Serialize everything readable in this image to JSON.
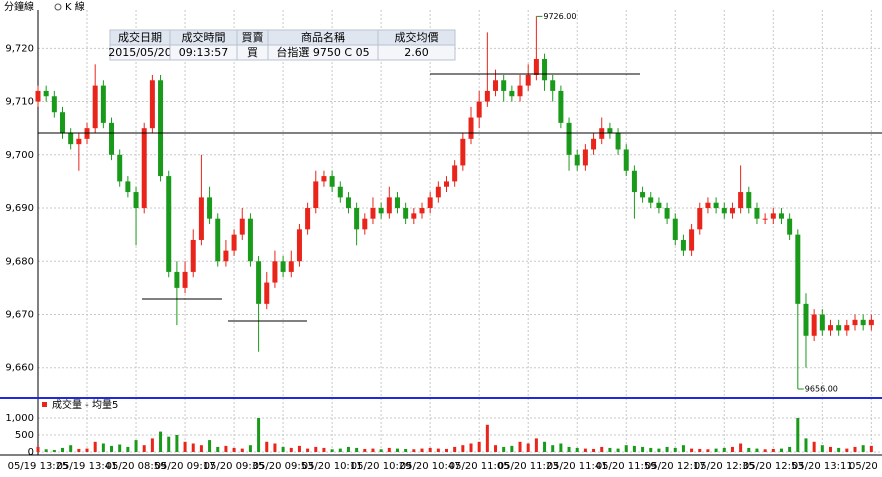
{
  "header": {
    "mode_minute": "分鐘線",
    "mode_k": "K 線"
  },
  "trade_table": {
    "columns": [
      "成交日期",
      "成交時間",
      "買賣",
      "商品名稱",
      "成交均價"
    ],
    "row": [
      "2015/05/20",
      "09:13:57",
      "買",
      "台指選  9750 C 05",
      "2.60"
    ]
  },
  "chart_data": {
    "type": "candlestick",
    "categories": [
      "05/19 13:25",
      null,
      null,
      null,
      null,
      null,
      "05/19 13:41",
      null,
      null,
      null,
      null,
      null,
      "05/20 08:59",
      null,
      null,
      null,
      null,
      null,
      "05/20 09:17",
      null,
      null,
      null,
      null,
      null,
      "05/20 09:35",
      null,
      null,
      null,
      null,
      null,
      "05/20 09:53",
      null,
      null,
      null,
      null,
      null,
      "05/20 10:11",
      null,
      null,
      null,
      null,
      null,
      "05/20 10:29",
      null,
      null,
      null,
      null,
      null,
      "05/20 10:47",
      null,
      null,
      null,
      null,
      null,
      "05/20 11:05",
      null,
      null,
      null,
      null,
      null,
      "05/20 11:23",
      null,
      null,
      null,
      null,
      null,
      "05/20 11:41",
      null,
      null,
      null,
      null,
      null,
      "05/20 11:59",
      null,
      null,
      null,
      null,
      null,
      "05/20 12:17",
      null,
      null,
      null,
      null,
      null,
      "05/20 12:35",
      null,
      null,
      null,
      null,
      null,
      "05/20 12:53",
      null,
      null,
      null,
      null,
      null,
      "05/20 13:11",
      null,
      null,
      null,
      null,
      null,
      "05/20 13"
    ],
    "open": [
      9710,
      9712,
      9711,
      9708,
      9704,
      9702,
      9703,
      9705,
      9713,
      9706,
      9700,
      9695,
      9693,
      9690,
      9705,
      9714,
      9696,
      9678,
      9675,
      9678,
      9684,
      9692,
      9688,
      9680,
      9682,
      9685,
      9688,
      9680,
      9672,
      9676,
      9680,
      9678,
      9680,
      9686,
      9690,
      9695,
      9696,
      9694,
      9692,
      9690,
      9686,
      9688,
      9690,
      9689,
      9692,
      9690,
      9688,
      9689,
      9690,
      9692,
      9694,
      9695,
      9698,
      9703,
      9707,
      9710,
      9712,
      9714,
      9712,
      9711,
      9713,
      9715,
      9718,
      9714,
      9712,
      9706,
      9700,
      9698,
      9701,
      9703,
      9705,
      9704,
      9701,
      9697,
      9693,
      9692,
      9691,
      9690,
      9688,
      9684,
      9682,
      9686,
      9690,
      9691,
      9690,
      9689,
      9690,
      9693,
      9690,
      9688,
      9688,
      9689,
      9688,
      9685,
      9672,
      9666,
      9670,
      9667,
      9668,
      9667,
      9668,
      9669,
      9668
    ],
    "high": [
      9713,
      9713,
      9712,
      9709,
      9705,
      9704,
      9706,
      9717,
      9714,
      9707,
      9701,
      9696,
      9694,
      9706,
      9715,
      9715,
      9697,
      9680,
      9680,
      9686,
      9700,
      9694,
      9689,
      9684,
      9686,
      9690,
      9689,
      9681,
      9678,
      9682,
      9681,
      9682,
      9687,
      9691,
      9697,
      9697,
      9697,
      9695,
      9693,
      9691,
      9689,
      9692,
      9691,
      9694,
      9693,
      9691,
      9690,
      9691,
      9693,
      9695,
      9696,
      9699,
      9704,
      9709,
      9712,
      9723,
      9716,
      9715,
      9713,
      9715,
      9717,
      9726,
      9719,
      9715,
      9713,
      9707,
      9701,
      9702,
      9704,
      9707,
      9706,
      9705,
      9702,
      9698,
      9694,
      9693,
      9692,
      9691,
      9689,
      9685,
      9687,
      9691,
      9692,
      9692,
      9691,
      9691,
      9698,
      9694,
      9691,
      9689,
      9690,
      9690,
      9689,
      9686,
      9674,
      9671,
      9671,
      9669,
      9669,
      9669,
      9670,
      9670,
      9670
    ],
    "low": [
      9709,
      9710,
      9707,
      9703,
      9701,
      9697,
      9702,
      9704,
      9705,
      9699,
      9694,
      9692,
      9683,
      9689,
      9704,
      9695,
      9677,
      9668,
      9674,
      9677,
      9683,
      9687,
      9679,
      9679,
      9681,
      9684,
      9679,
      9663,
      9671,
      9675,
      9677,
      9677,
      9679,
      9685,
      9689,
      9694,
      9693,
      9691,
      9689,
      9683,
      9685,
      9687,
      9688,
      9688,
      9689,
      9687,
      9687,
      9688,
      9689,
      9691,
      9693,
      9694,
      9697,
      9702,
      9705,
      9709,
      9711,
      9710,
      9710,
      9710,
      9712,
      9714,
      9712,
      9710,
      9705,
      9697,
      9697,
      9697,
      9700,
      9702,
      9703,
      9700,
      9696,
      9688,
      9691,
      9690,
      9689,
      9687,
      9683,
      9681,
      9681,
      9685,
      9689,
      9689,
      9688,
      9688,
      9689,
      9689,
      9687,
      9687,
      9687,
      9687,
      9684,
      9656,
      9660,
      9665,
      9666,
      9666,
      9666,
      9666,
      9667,
      9667,
      9667
    ],
    "close": [
      9712,
      9711,
      9708,
      9704,
      9702,
      9703,
      9705,
      9713,
      9706,
      9700,
      9695,
      9693,
      9690,
      9705,
      9714,
      9696,
      9678,
      9675,
      9678,
      9684,
      9692,
      9688,
      9680,
      9682,
      9685,
      9688,
      9680,
      9672,
      9676,
      9680,
      9678,
      9680,
      9686,
      9690,
      9695,
      9696,
      9694,
      9692,
      9690,
      9686,
      9688,
      9690,
      9689,
      9692,
      9690,
      9688,
      9689,
      9690,
      9692,
      9694,
      9695,
      9698,
      9703,
      9707,
      9710,
      9712,
      9714,
      9712,
      9711,
      9713,
      9715,
      9718,
      9714,
      9712,
      9706,
      9700,
      9698,
      9701,
      9703,
      9705,
      9704,
      9701,
      9697,
      9693,
      9692,
      9691,
      9690,
      9688,
      9684,
      9682,
      9686,
      9690,
      9691,
      9690,
      9689,
      9690,
      9693,
      9690,
      9688,
      9688,
      9689,
      9688,
      9685,
      9672,
      9666,
      9670,
      9667,
      9668,
      9667,
      9668,
      9669,
      9668,
      9669
    ],
    "volume": [
      150,
      80,
      60,
      120,
      200,
      90,
      100,
      300,
      250,
      180,
      220,
      150,
      350,
      200,
      400,
      600,
      450,
      500,
      300,
      250,
      200,
      350,
      150,
      180,
      120,
      100,
      200,
      1000,
      300,
      250,
      150,
      120,
      180,
      100,
      150,
      120,
      80,
      100,
      150,
      120,
      90,
      100,
      80,
      120,
      100,
      90,
      80,
      100,
      120,
      100,
      90,
      150,
      200,
      250,
      300,
      800,
      200,
      150,
      180,
      300,
      250,
      400,
      300,
      200,
      250,
      150,
      120,
      100,
      90,
      150,
      120,
      100,
      200,
      180,
      150,
      120,
      100,
      150,
      120,
      200,
      100,
      90,
      80,
      100,
      120,
      150,
      250,
      120,
      100,
      80,
      90,
      100,
      150,
      1000,
      400,
      300,
      200,
      150,
      120,
      100,
      150,
      200,
      180
    ],
    "up_color": "#e8241b",
    "down_color": "#1a9a1a",
    "ylim": [
      9654.5,
      9727.2
    ],
    "yticks": [
      {
        "value": 9660,
        "label": "9,660"
      },
      {
        "value": 9670,
        "label": "9,670"
      },
      {
        "value": 9680,
        "label": "9,680"
      },
      {
        "value": 9690,
        "label": "9,690"
      },
      {
        "value": 9700,
        "label": "9,700"
      },
      {
        "value": 9710,
        "label": "9,710"
      },
      {
        "value": 9720,
        "label": "9,720"
      }
    ],
    "high_label": "9726.00",
    "low_label": "9656.00",
    "volume_legend": "成交量 - 均量5",
    "volume_ylim": [
      0,
      1440
    ],
    "volume_yticks": [
      0,
      500,
      {
        "value": 1000,
        "label": "1,000"
      }
    ],
    "grid": true
  }
}
